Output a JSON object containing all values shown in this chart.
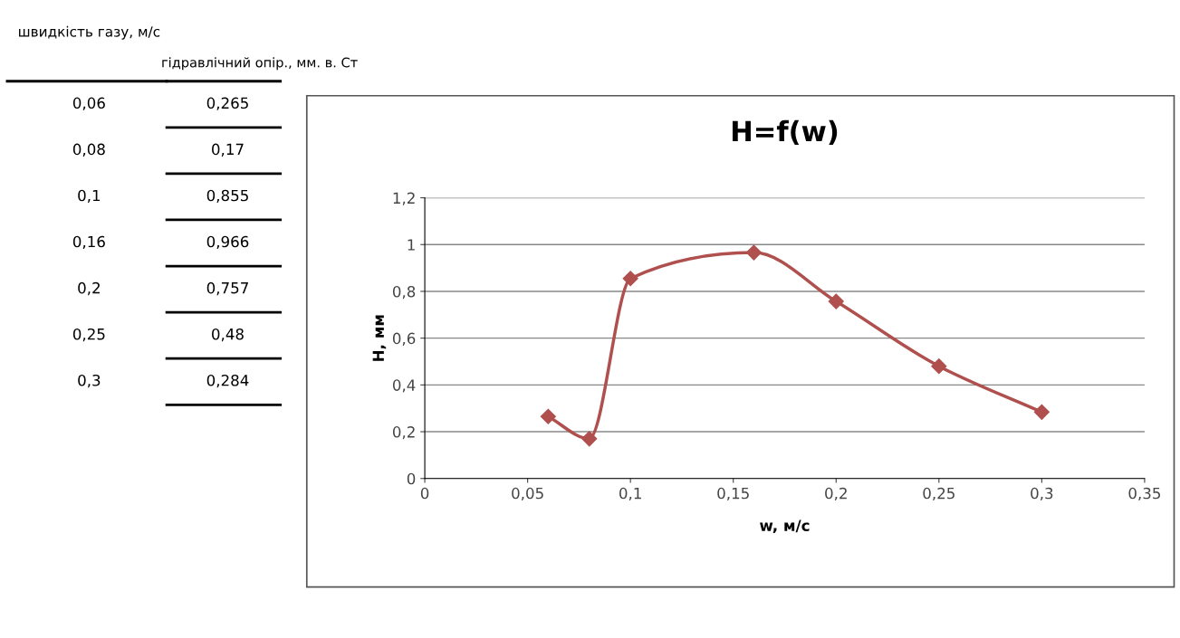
{
  "chart_data": [
    {
      "type": "other",
      "annotations": [
        "швидкість газу, м/с",
        "гідравлічний опір., мм. в. Ст",
        "0,06",
        "0,265",
        "0,08",
        "0,17",
        "0,1",
        "0,855",
        "0,16",
        "0,966",
        "0,2",
        "0,757",
        "0,25",
        "0,48",
        "0,3",
        "0,284"
      ]
    },
    {
      "type": "line",
      "title": "H=f(w)",
      "xlabel": "w, м/с",
      "ylabel": "H, мм",
      "x": [
        0.06,
        0.08,
        0.1,
        0.16,
        0.2,
        0.25,
        0.3
      ],
      "series": [
        {
          "color": "#b0504e",
          "values": [
            0.265,
            0.17,
            0.855,
            0.966,
            0.757,
            0.48,
            0.284
          ]
        }
      ],
      "xlim": [
        0,
        0.35
      ],
      "xticks": [
        0,
        {
          "value": 0.05,
          "label": "0,05"
        },
        {
          "value": 0.1,
          "label": "0,1"
        },
        {
          "value": 0.15,
          "label": "0,15"
        },
        {
          "value": 0.2,
          "label": "0,2"
        },
        {
          "value": 0.25,
          "label": "0,25"
        },
        {
          "value": 0.3,
          "label": "0,3"
        },
        {
          "value": 0.35,
          "label": "0,35"
        }
      ],
      "ylim": [
        0,
        1.2
      ],
      "yticks": [
        0,
        {
          "value": 0.2,
          "label": "0,2"
        },
        {
          "value": 0.4,
          "label": "0,4"
        },
        {
          "value": 0.6,
          "label": "0,6"
        },
        {
          "value": 0.8,
          "label": "0,8"
        },
        1,
        {
          "value": 1.2,
          "label": "1,2"
        }
      ],
      "grid": "y",
      "marker": "diamond",
      "line_style": "solid",
      "legend": false
    }
  ]
}
